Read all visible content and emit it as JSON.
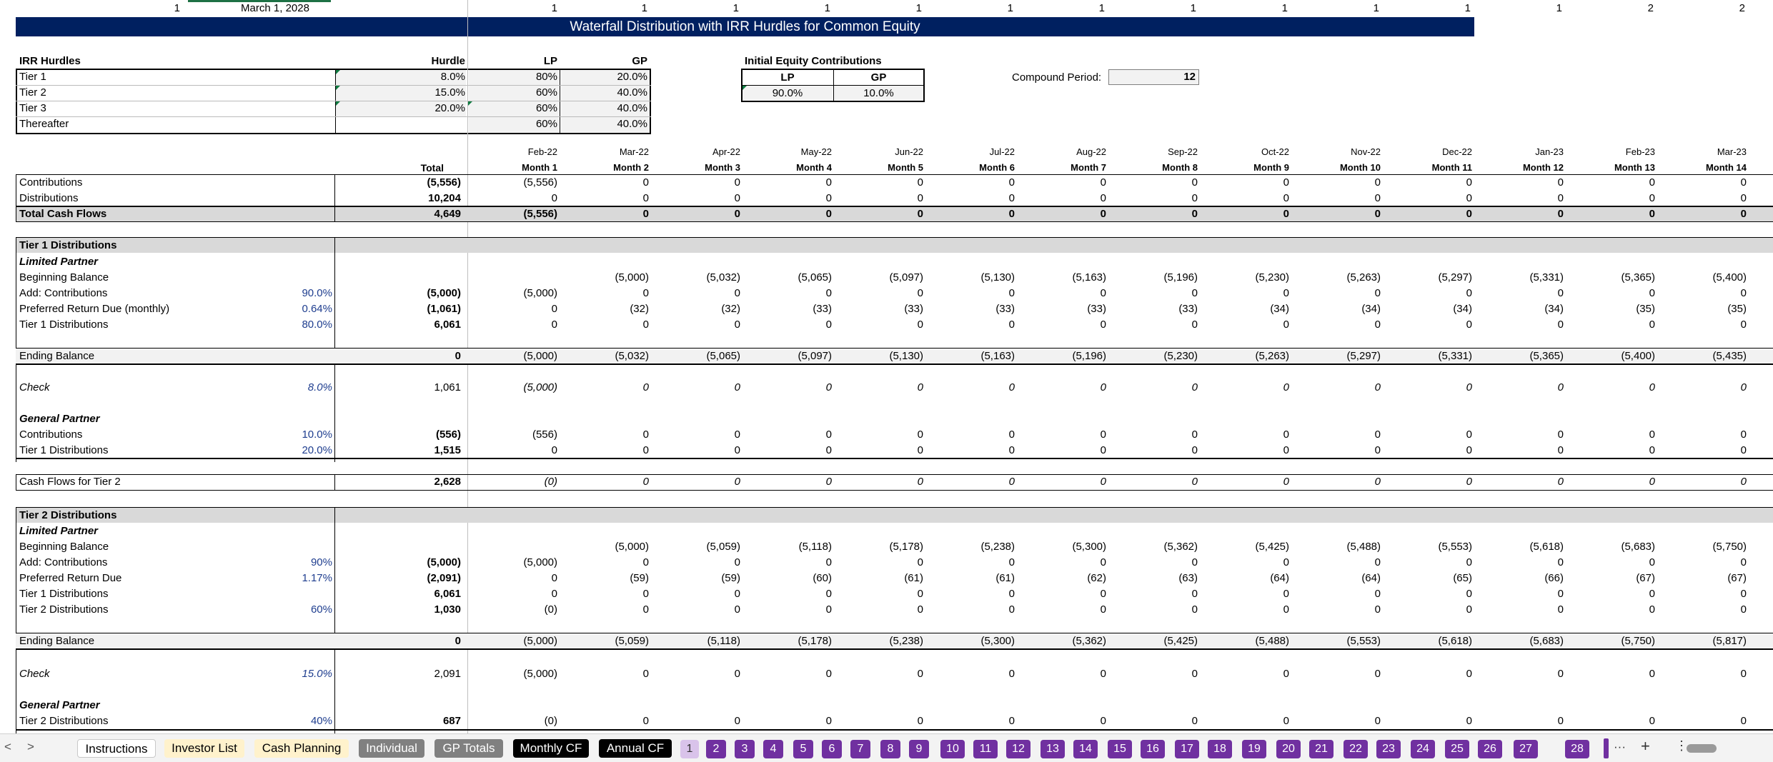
{
  "top_row": {
    "c1": "1",
    "date": "March 1, 2028",
    "flags": [
      "1",
      "1",
      "1",
      "1",
      "1",
      "1",
      "1",
      "1",
      "1",
      "1",
      "1",
      "1",
      "2",
      "2"
    ]
  },
  "title": "Waterfall Distribution with IRR Hurdles for Common Equity",
  "irr": {
    "heading": "IRR Hurdles",
    "hurdle_label": "Hurdle",
    "lp_label": "LP",
    "gp_label": "GP",
    "rows": [
      {
        "name": "Tier 1",
        "hurdle": "8.0%",
        "lp": "80%",
        "gp": "20.0%"
      },
      {
        "name": "Tier 2",
        "hurdle": "15.0%",
        "lp": "60%",
        "gp": "40.0%"
      },
      {
        "name": "Tier 3",
        "hurdle": "20.0%",
        "lp": "60%",
        "gp": "40.0%"
      },
      {
        "name": "Thereafter",
        "hurdle": "",
        "lp": "60%",
        "gp": "40.0%"
      }
    ]
  },
  "init_eq": {
    "heading": "Initial Equity Contributions",
    "lp_label": "LP",
    "gp_label": "GP",
    "lp": "90.0%",
    "gp": "10.0%"
  },
  "compound": {
    "label": "Compound Period:",
    "value": "12"
  },
  "months": [
    "Feb-22",
    "Mar-22",
    "Apr-22",
    "May-22",
    "Jun-22",
    "Jul-22",
    "Aug-22",
    "Sep-22",
    "Oct-22",
    "Nov-22",
    "Dec-22",
    "Jan-23",
    "Feb-23",
    "Mar-23"
  ],
  "month_nums": [
    "Month 1",
    "Month 2",
    "Month 3",
    "Month 4",
    "Month 5",
    "Month 6",
    "Month 7",
    "Month 8",
    "Month 9",
    "Month 10",
    "Month 11",
    "Month 12",
    "Month 13",
    "Month 14"
  ],
  "total_label": "Total",
  "rows": [
    {
      "y": 255,
      "label": "Contributions",
      "pct": "",
      "total": "(5,556)",
      "vals": [
        "(5,556)",
        "0",
        "0",
        "0",
        "0",
        "0",
        "0",
        "0",
        "0",
        "0",
        "0",
        "0",
        "0",
        "0"
      ]
    },
    {
      "y": 277,
      "label": "Distributions",
      "pct": "",
      "total": "10,204",
      "vals": [
        "0",
        "0",
        "0",
        "0",
        "0",
        "0",
        "0",
        "0",
        "0",
        "0",
        "0",
        "0",
        "0",
        "0"
      ]
    },
    {
      "y": 299,
      "label": "Total Cash Flows",
      "pct": "",
      "total": "4,649",
      "vals": [
        "(5,556)",
        "0",
        "0",
        "0",
        "0",
        "0",
        "0",
        "0",
        "0",
        "0",
        "0",
        "0",
        "0",
        "0"
      ],
      "bold": true
    },
    {
      "y": 343,
      "label": "Tier 1 Distributions",
      "pct": "",
      "total": "",
      "vals": [],
      "bold": true
    },
    {
      "y": 366,
      "label": "Limited Partner",
      "pct": "",
      "total": "",
      "vals": [],
      "bold": true,
      "ital": true
    },
    {
      "y": 388,
      "label": "Beginning Balance",
      "pct": "",
      "total": "",
      "vals": [
        "",
        "(5,000)",
        "(5,032)",
        "(5,065)",
        "(5,097)",
        "(5,130)",
        "(5,163)",
        "(5,196)",
        "(5,230)",
        "(5,263)",
        "(5,297)",
        "(5,331)",
        "(5,365)",
        "(5,400)"
      ]
    },
    {
      "y": 410,
      "label": "Add: Contributions",
      "pct": "90.0%",
      "total": "(5,000)",
      "vals": [
        "(5,000)",
        "0",
        "0",
        "0",
        "0",
        "0",
        "0",
        "0",
        "0",
        "0",
        "0",
        "0",
        "0",
        "0"
      ]
    },
    {
      "y": 432,
      "label": "Preferred Return Due (monthly)",
      "pct": "0.64%",
      "total": "(1,061)",
      "vals": [
        "0",
        "(32)",
        "(32)",
        "(33)",
        "(33)",
        "(33)",
        "(33)",
        "(33)",
        "(34)",
        "(34)",
        "(34)",
        "(34)",
        "(35)",
        "(35)"
      ]
    },
    {
      "y": 454,
      "label": "Tier 1 Distributions",
      "pct": "80.0%",
      "total": "6,061",
      "vals": [
        "0",
        "0",
        "0",
        "0",
        "0",
        "0",
        "0",
        "0",
        "0",
        "0",
        "0",
        "0",
        "0",
        "0"
      ]
    },
    {
      "y": 498,
      "label": "Ending Balance",
      "pct": "",
      "total": "0",
      "vals": [
        "(5,000)",
        "(5,032)",
        "(5,065)",
        "(5,097)",
        "(5,130)",
        "(5,163)",
        "(5,196)",
        "(5,230)",
        "(5,263)",
        "(5,297)",
        "(5,331)",
        "(5,365)",
        "(5,400)",
        "(5,435)"
      ],
      "totalbold": true
    },
    {
      "y": 542,
      "label": "Check",
      "pct": "8.0%",
      "total": "1,061",
      "vals": [
        "(5,000)",
        "0",
        "0",
        "0",
        "0",
        "0",
        "0",
        "0",
        "0",
        "0",
        "0",
        "0",
        "0",
        "0"
      ],
      "ital": true,
      "pctital": true
    },
    {
      "y": 586,
      "label": "General Partner",
      "pct": "",
      "total": "",
      "vals": [],
      "bold": true,
      "ital": true
    },
    {
      "y": 608,
      "label": "Contributions",
      "pct": "10.0%",
      "total": "(556)",
      "vals": [
        "(556)",
        "0",
        "0",
        "0",
        "0",
        "0",
        "0",
        "0",
        "0",
        "0",
        "0",
        "0",
        "0",
        "0"
      ]
    },
    {
      "y": 630,
      "label": "Tier 1 Distributions",
      "pct": "20.0%",
      "total": "1,515",
      "vals": [
        "0",
        "0",
        "0",
        "0",
        "0",
        "0",
        "0",
        "0",
        "0",
        "0",
        "0",
        "0",
        "0",
        "0"
      ]
    },
    {
      "y": 674,
      "label": "Cash Flows for Tier 2",
      "pct": "",
      "total": "2,628",
      "vals": [
        "(0)",
        "0",
        "0",
        "0",
        "0",
        "0",
        "0",
        "0",
        "0",
        "0",
        "0",
        "0",
        "0",
        "0"
      ],
      "valital": true,
      "totalbold": true
    },
    {
      "y": 721,
      "label": "Tier 2 Distributions",
      "pct": "",
      "total": "",
      "vals": [],
      "bold": true
    },
    {
      "y": 743,
      "label": "Limited Partner",
      "pct": "",
      "total": "",
      "vals": [],
      "bold": true,
      "ital": true
    },
    {
      "y": 765,
      "label": "Beginning Balance",
      "pct": "",
      "total": "",
      "vals": [
        "",
        "(5,000)",
        "(5,059)",
        "(5,118)",
        "(5,178)",
        "(5,238)",
        "(5,300)",
        "(5,362)",
        "(5,425)",
        "(5,488)",
        "(5,553)",
        "(5,618)",
        "(5,683)",
        "(5,750)"
      ]
    },
    {
      "y": 787,
      "label": "Add: Contributions",
      "pct": "90%",
      "total": "(5,000)",
      "vals": [
        "(5,000)",
        "0",
        "0",
        "0",
        "0",
        "0",
        "0",
        "0",
        "0",
        "0",
        "0",
        "0",
        "0",
        "0"
      ]
    },
    {
      "y": 809,
      "label": "Preferred Return Due",
      "pct": "1.17%",
      "total": "(2,091)",
      "vals": [
        "0",
        "(59)",
        "(59)",
        "(60)",
        "(61)",
        "(61)",
        "(62)",
        "(63)",
        "(64)",
        "(64)",
        "(65)",
        "(66)",
        "(67)",
        "(67)"
      ]
    },
    {
      "y": 831,
      "label": "Tier 1 Distributions",
      "pct": "",
      "total": "6,061",
      "vals": [
        "0",
        "0",
        "0",
        "0",
        "0",
        "0",
        "0",
        "0",
        "0",
        "0",
        "0",
        "0",
        "0",
        "0"
      ]
    },
    {
      "y": 853,
      "label": "Tier 2 Distributions",
      "pct": "60%",
      "total": "1,030",
      "vals": [
        "(0)",
        "0",
        "0",
        "0",
        "0",
        "0",
        "0",
        "0",
        "0",
        "0",
        "0",
        "0",
        "0",
        "0"
      ]
    },
    {
      "y": 897,
      "label": "Ending Balance",
      "pct": "",
      "total": "0",
      "vals": [
        "(5,000)",
        "(5,059)",
        "(5,118)",
        "(5,178)",
        "(5,238)",
        "(5,300)",
        "(5,362)",
        "(5,425)",
        "(5,488)",
        "(5,553)",
        "(5,618)",
        "(5,683)",
        "(5,750)",
        "(5,817)"
      ],
      "totalbold": true
    },
    {
      "y": 943,
      "label": "Check",
      "pct": "15.0%",
      "total": "2,091",
      "vals": [
        "(5,000)",
        "0",
        "0",
        "0",
        "0",
        "0",
        "0",
        "0",
        "0",
        "0",
        "0",
        "0",
        "0",
        "0"
      ],
      "ital": true,
      "pctital": true
    },
    {
      "y": 987,
      "label": "General Partner",
      "pct": "",
      "total": "",
      "vals": [],
      "bold": true,
      "ital": true
    },
    {
      "y": 1009,
      "label": "Tier 2 Distributions",
      "pct": "40%",
      "total": "687",
      "vals": [
        "(0)",
        "0",
        "0",
        "0",
        "0",
        "0",
        "0",
        "0",
        "0",
        "0",
        "0",
        "0",
        "0",
        "0"
      ]
    }
  ],
  "tabs": [
    {
      "label": "Instructions",
      "style": "active"
    },
    {
      "label": "Investor List",
      "style": "yellow"
    },
    {
      "label": "Cash Planning",
      "style": "yellow"
    },
    {
      "label": "Individual",
      "style": "grey"
    },
    {
      "label": "GP Totals",
      "style": "grey"
    },
    {
      "label": "Monthly CF",
      "style": "black"
    },
    {
      "label": "Annual CF",
      "style": "black"
    }
  ],
  "num_tabs": [
    "1",
    "2",
    "3",
    "4",
    "5",
    "6",
    "7",
    "8",
    "9",
    "10",
    "11",
    "12",
    "13",
    "14",
    "15",
    "16",
    "17",
    "18",
    "19",
    "20",
    "21",
    "22",
    "23",
    "24",
    "25",
    "26",
    "27",
    "28"
  ],
  "nav": {
    "prev": "<",
    "next": ">",
    "more": "···",
    "add": "+",
    "menu": "⋮"
  },
  "colors": {
    "banner": "#002060",
    "tab_purple": "#7030a0",
    "tab_yellow": "#fff2cc",
    "tab_grey": "#808080"
  }
}
